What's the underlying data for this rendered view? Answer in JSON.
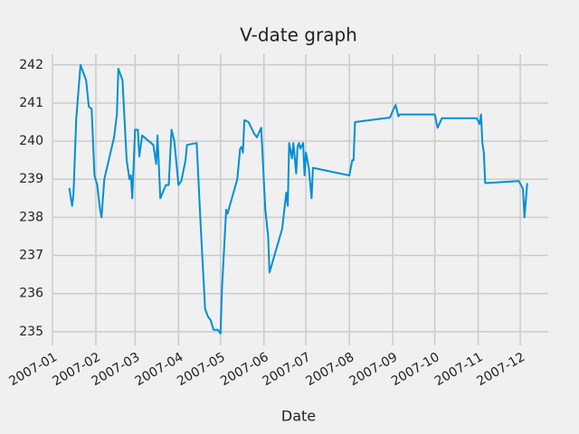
{
  "chart_data": {
    "type": "line",
    "title": "V-date graph",
    "x_label": "Date",
    "x": [
      "2007-01-13",
      "2007-01-15",
      "2007-01-16",
      "2007-01-18",
      "2007-01-21",
      "2007-01-25",
      "2007-01-27",
      "2007-01-29",
      "2007-01-31",
      "2007-02-02",
      "2007-02-04",
      "2007-02-05",
      "2007-02-07",
      "2007-02-14",
      "2007-02-16",
      "2007-02-17",
      "2007-02-20",
      "2007-02-21",
      "2007-02-23",
      "2007-02-25",
      "2007-02-26",
      "2007-02-27",
      "2007-03-01",
      "2007-03-03",
      "2007-03-04",
      "2007-03-06",
      "2007-03-14",
      "2007-03-16",
      "2007-03-17",
      "2007-03-19",
      "2007-03-23",
      "2007-03-25",
      "2007-03-27",
      "2007-03-29",
      "2007-04-01",
      "2007-04-03",
      "2007-04-06",
      "2007-04-07",
      "2007-04-14",
      "2007-04-17",
      "2007-04-20",
      "2007-04-22",
      "2007-04-24",
      "2007-04-26",
      "2007-04-29",
      "2007-05-01",
      "2007-05-02",
      "2007-05-05",
      "2007-05-06",
      "2007-05-13",
      "2007-05-15",
      "2007-05-16",
      "2007-05-17",
      "2007-05-18",
      "2007-05-21",
      "2007-05-25",
      "2007-05-27",
      "2007-05-30",
      "2007-06-02",
      "2007-06-04",
      "2007-06-05",
      "2007-06-14",
      "2007-06-16",
      "2007-06-17",
      "2007-06-18",
      "2007-06-19",
      "2007-06-21",
      "2007-06-22",
      "2007-06-24",
      "2007-06-25",
      "2007-06-26",
      "2007-06-27",
      "2007-06-29",
      "2007-06-30",
      "2007-07-01",
      "2007-07-03",
      "2007-07-05",
      "2007-07-06",
      "2007-08-01",
      "2007-08-03",
      "2007-08-04",
      "2007-08-05",
      "2007-08-30",
      "2007-09-01",
      "2007-09-03",
      "2007-09-05",
      "2007-09-06",
      "2007-10-01",
      "2007-10-03",
      "2007-10-06",
      "2007-10-31",
      "2007-11-02",
      "2007-11-03",
      "2007-11-04",
      "2007-11-05",
      "2007-11-06",
      "2007-11-30",
      "2007-12-03",
      "2007-12-04",
      "2007-12-06"
    ],
    "series": [
      {
        "color": "#008fd5",
        "values": [
          238.77,
          238.3,
          238.6,
          240.6,
          242.0,
          241.6,
          240.9,
          240.85,
          239.1,
          238.85,
          238.2,
          238.0,
          239.0,
          240.1,
          240.7,
          241.9,
          241.6,
          240.9,
          239.5,
          239.0,
          239.1,
          238.5,
          240.3,
          240.3,
          239.6,
          240.15,
          239.9,
          239.4,
          240.15,
          238.5,
          238.85,
          238.85,
          240.3,
          240.0,
          238.85,
          238.95,
          239.5,
          239.9,
          239.95,
          237.65,
          235.6,
          235.4,
          235.3,
          235.05,
          235.05,
          234.95,
          236.1,
          238.2,
          238.1,
          239.0,
          239.8,
          239.85,
          239.7,
          240.55,
          240.5,
          240.2,
          240.1,
          240.35,
          238.2,
          237.5,
          236.55,
          237.7,
          238.35,
          238.65,
          238.3,
          239.95,
          239.55,
          239.95,
          239.15,
          239.85,
          239.95,
          239.8,
          239.95,
          239.1,
          239.7,
          239.3,
          238.5,
          239.3,
          239.1,
          239.5,
          239.5,
          240.5,
          240.62,
          240.8,
          240.95,
          240.65,
          240.7,
          240.7,
          240.35,
          240.6,
          240.6,
          240.45,
          240.7,
          239.95,
          239.7,
          238.9,
          238.95,
          238.75,
          238.0,
          238.9
        ]
      }
    ],
    "xlim": [
      "2007-01-01",
      "2007-12-21"
    ],
    "xticks": [
      {
        "value": "2007-01-01",
        "label": "2007-01"
      },
      {
        "value": "2007-02-01",
        "label": "2007-02"
      },
      {
        "value": "2007-03-01",
        "label": "2007-03"
      },
      {
        "value": "2007-04-01",
        "label": "2007-04"
      },
      {
        "value": "2007-05-01",
        "label": "2007-05"
      },
      {
        "value": "2007-06-01",
        "label": "2007-06"
      },
      {
        "value": "2007-07-01",
        "label": "2007-07"
      },
      {
        "value": "2007-08-01",
        "label": "2007-08"
      },
      {
        "value": "2007-09-01",
        "label": "2007-09"
      },
      {
        "value": "2007-10-01",
        "label": "2007-10"
      },
      {
        "value": "2007-11-01",
        "label": "2007-11"
      },
      {
        "value": "2007-12-01",
        "label": "2007-12"
      }
    ],
    "ylim": [
      234.64,
      242.28
    ],
    "yticks": [
      235,
      236,
      237,
      238,
      239,
      240,
      241,
      242
    ],
    "grid": true
  }
}
